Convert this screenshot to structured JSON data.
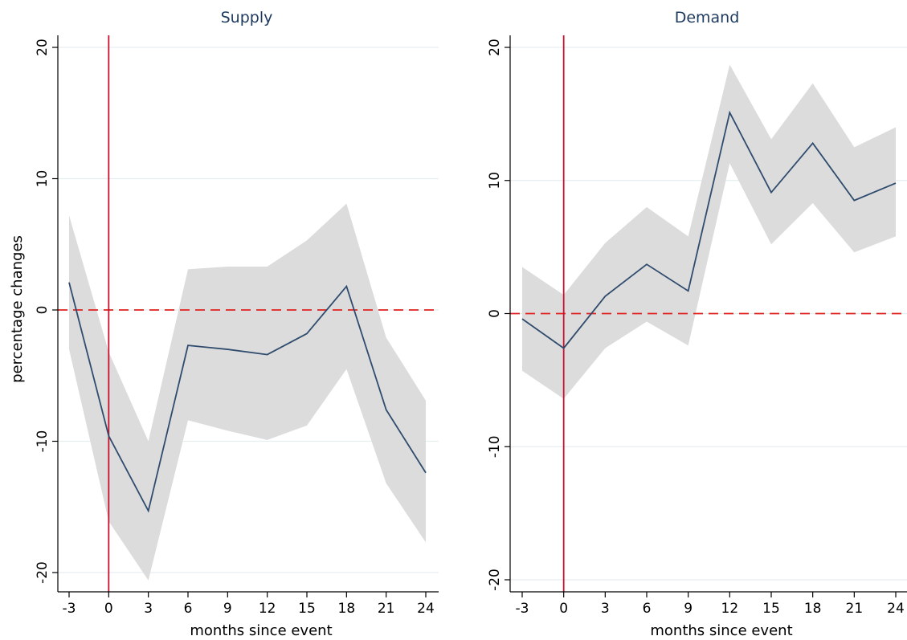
{
  "chart_data": [
    {
      "type": "line",
      "title": "Supply",
      "xlabel": "months since event",
      "ylabel": "percentage changes",
      "x": [
        -3,
        0,
        3,
        6,
        9,
        12,
        15,
        18,
        21,
        24
      ],
      "x_ticks": [
        "-3",
        "0",
        "3",
        "6",
        "9",
        "12",
        "15",
        "18",
        "21",
        "24"
      ],
      "y_ticks": [
        "-20",
        "-10",
        "0",
        "10",
        "20"
      ],
      "xlim": [
        -3,
        24
      ],
      "ylim": [
        -20,
        20
      ],
      "grid": true,
      "series": [
        {
          "values": [
            2.1,
            -9.6,
            -15.3,
            -2.7,
            -3.0,
            -3.4,
            -1.8,
            1.8,
            -7.6,
            -12.4
          ],
          "ci_upper": [
            7.2,
            -3.2,
            -10.0,
            3.1,
            3.3,
            3.3,
            5.3,
            8.1,
            -2.1,
            -6.9
          ],
          "ci_lower": [
            -3.0,
            -16.1,
            -20.6,
            -8.4,
            -9.2,
            -9.9,
            -8.8,
            -4.5,
            -13.2,
            -17.7
          ]
        }
      ],
      "reference_lines": {
        "horizontal_y": 0,
        "vertical_x": 0
      },
      "colors": {
        "line": "#2f4b6e",
        "band": "#dcdcdc",
        "zero_line": "#e0201f",
        "event_line": "#c8102e"
      }
    },
    {
      "type": "line",
      "title": "Demand",
      "xlabel": "months since event",
      "ylabel": "",
      "x": [
        -3,
        0,
        3,
        6,
        9,
        12,
        15,
        18,
        21,
        24
      ],
      "x_ticks": [
        "-3",
        "0",
        "3",
        "6",
        "9",
        "12",
        "15",
        "18",
        "21",
        "24"
      ],
      "y_ticks": [
        "-20",
        "-10",
        "0",
        "10",
        "20"
      ],
      "xlim": [
        -3,
        24
      ],
      "ylim": [
        -20,
        20
      ],
      "grid": true,
      "series": [
        {
          "values": [
            -0.4,
            -2.6,
            1.3,
            3.7,
            1.7,
            15.1,
            9.1,
            12.8,
            8.5,
            9.8
          ],
          "ci_upper": [
            3.5,
            1.4,
            5.3,
            8.0,
            5.8,
            18.7,
            13.1,
            17.3,
            12.5,
            14.0
          ],
          "ci_lower": [
            -4.3,
            -6.4,
            -2.6,
            -0.6,
            -2.4,
            11.3,
            5.2,
            8.3,
            4.6,
            5.8
          ]
        }
      ],
      "reference_lines": {
        "horizontal_y": 0,
        "vertical_x": 0
      },
      "colors": {
        "line": "#2f4b6e",
        "band": "#dcdcdc",
        "zero_line": "#e0201f",
        "event_line": "#c8102e"
      }
    }
  ]
}
